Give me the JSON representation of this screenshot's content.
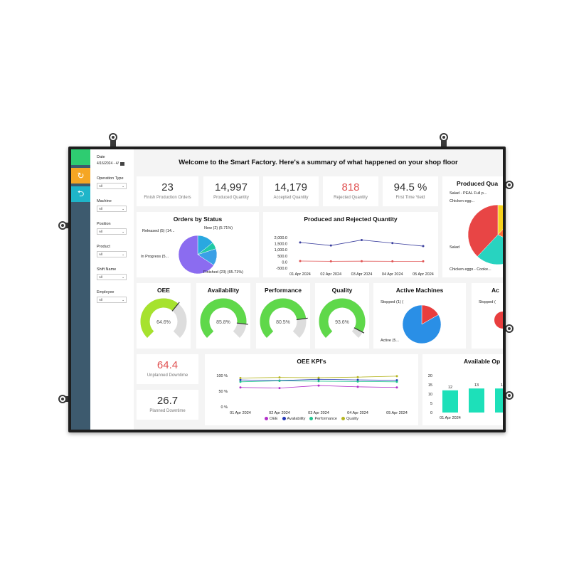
{
  "filters": {
    "date": {
      "label": "Date",
      "value": "4/16/2024 - 4/"
    },
    "items": [
      {
        "label": "Operation Type",
        "value": "All"
      },
      {
        "label": "Machine",
        "value": "All"
      },
      {
        "label": "Position",
        "value": "All"
      },
      {
        "label": "Product",
        "value": "All"
      },
      {
        "label": "Shift Name",
        "value": "All"
      },
      {
        "label": "Employee",
        "value": "All"
      }
    ]
  },
  "header": {
    "title": "Welcome to the Smart Factory. Here's a summary of what happened on your shop floor"
  },
  "kpis": [
    {
      "value": "23",
      "label": "Finish Production Orders"
    },
    {
      "value": "14,997",
      "label": "Produced Quantity"
    },
    {
      "value": "14,179",
      "label": "Accepted Quantity"
    },
    {
      "value": "818",
      "label": "Rejected Quantity"
    },
    {
      "value": "94.5 %",
      "label": "First Time Yield"
    }
  ],
  "downtime": [
    {
      "value": "64.4",
      "label": "Unplanned Downtime"
    },
    {
      "value": "26.7",
      "label": "Planned Downtime"
    }
  ],
  "colors": {
    "red": "#e05252",
    "green": "#2ecc71",
    "orange": "#f5a623",
    "teal": "#1fb5c9",
    "rail": "#3d5a6e"
  },
  "chart_data": [
    {
      "type": "pie",
      "title": "Orders by Status",
      "labels": [
        "Released (5) (14...",
        "New (2) (5.71%)",
        "In Progress (5...",
        "Finished (23) (65.71%)"
      ],
      "values": [
        5,
        2,
        5,
        23
      ],
      "colors": [
        "#29a8e0",
        "#20c9a6",
        "#3aa0e6",
        "#8b6cf0"
      ]
    },
    {
      "type": "line",
      "title": "Produced and Rejected Quantity",
      "categories": [
        "01 Apr 2024",
        "02 Apr 2024",
        "03 Apr 2024",
        "04 Apr 2024",
        "05 Apr 2024"
      ],
      "yticks": [
        "2,000.0",
        "1,500.0",
        "1,000.0",
        "500.0",
        "0.0",
        "-500.0"
      ],
      "ylim": [
        -500,
        2000
      ],
      "series": [
        {
          "values": [
            1600,
            1350,
            1800,
            1550,
            1300
          ],
          "color": "#3b3f9e"
        },
        {
          "values": [
            80,
            60,
            70,
            60,
            60
          ],
          "color": "#e05252"
        }
      ]
    },
    {
      "type": "pie",
      "title": "Produced Qua",
      "labels": [
        "Salad - PEAL Full p...",
        "Chicken egg...",
        "Salad",
        "Chicken eggs - Cooke..."
      ],
      "values": [
        12,
        20,
        30,
        38
      ],
      "colors": [
        "#f7d21e",
        "#ff6f3c",
        "#28d3c0",
        "#e84545"
      ]
    },
    {
      "type": "pie",
      "title": "Active Machines",
      "labels": [
        "Stopped (1) (",
        "Active (5..."
      ],
      "values": [
        1,
        5
      ],
      "colors": [
        "#e83e3e",
        "#2a8fe6"
      ]
    },
    {
      "type": "line",
      "title": "OEE KPI's",
      "categories": [
        "01 Apr 2024",
        "02 Apr 2024",
        "03 Apr 2024",
        "04 Apr 2024",
        "05 Apr 2024"
      ],
      "yticks": [
        "100 %",
        "50 %",
        "0 %"
      ],
      "ylim": [
        0,
        100
      ],
      "series": [
        {
          "name": "OEE",
          "values": [
            62,
            60,
            68,
            64,
            62
          ],
          "color": "#b22fc9"
        },
        {
          "name": "Availability",
          "values": [
            86,
            84,
            88,
            86,
            85
          ],
          "color": "#2236b5"
        },
        {
          "name": "Performance",
          "values": [
            80,
            83,
            82,
            81,
            80
          ],
          "color": "#1fc28e"
        },
        {
          "name": "Quality",
          "values": [
            92,
            94,
            93,
            95,
            98
          ],
          "color": "#b5b520"
        }
      ]
    },
    {
      "type": "bar",
      "title": "Available Op",
      "categories": [
        "01 Apr 2024",
        "",
        ""
      ],
      "values": [
        12,
        13,
        13
      ],
      "yticks": [
        "20",
        "15",
        "10",
        "5",
        "0"
      ],
      "ylim": [
        0,
        20
      ],
      "color": "#1de0b9"
    }
  ],
  "gauges": [
    {
      "title": "OEE",
      "value": 64.6,
      "label": "64.6%",
      "color": "#a6e22e"
    },
    {
      "title": "Availability",
      "value": 85.8,
      "label": "85.8%",
      "color": "#5fd84a"
    },
    {
      "title": "Performance",
      "value": 80.5,
      "label": "80.5%",
      "color": "#5fd84a"
    },
    {
      "title": "Quality",
      "value": 93.6,
      "label": "93.6%",
      "color": "#5fd84a"
    }
  ],
  "cutoff": {
    "title": "Ac",
    "label": "Stopped ("
  }
}
